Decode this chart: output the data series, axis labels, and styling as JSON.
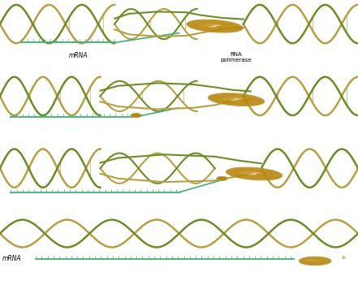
{
  "bg_color": "#ffffff",
  "dna_color1": "#6b8e23",
  "dna_color2": "#b8a040",
  "dna_inner": "#d4c87a",
  "mrna_color": "#3cb371",
  "polymerase_color": "#b8860b",
  "polymerase_light": "#d4a843",
  "text_color": "#000000",
  "label_mrna": "mRNA",
  "label_rna_pol": "RNA\npolimerase",
  "fig_width": 4.41,
  "fig_height": 3.51,
  "panel_count": 4,
  "dna_strand_color": "#6b7a3a",
  "dna_bar_color": "#a8a060",
  "dna_cross_color": "#c8b840"
}
